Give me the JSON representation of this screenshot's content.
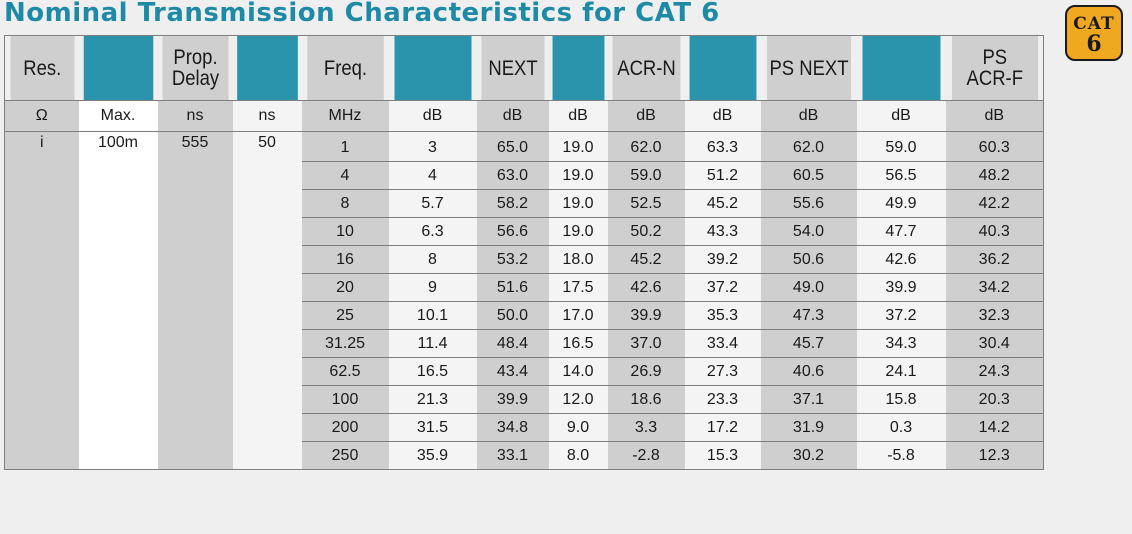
{
  "title": "Nominal Transmission Characteristics for CAT 6",
  "badge": {
    "line1": "CAT",
    "line2": "6"
  },
  "colors": {
    "title": "#1e8aa6",
    "teal": "#2a94ad",
    "gray": "#cfcfcf",
    "badge": "#f0a820"
  },
  "headers": [
    "Res.",
    "",
    "Prop. Delay",
    "",
    "Freq.",
    "",
    "NEXT",
    "",
    "ACR-N",
    "",
    "PS NEXT",
    "",
    "PS ACR-F"
  ],
  "units": [
    "Ω",
    "Max.",
    "ns",
    "ns",
    "MHz",
    "dB",
    "dB",
    "dB",
    "dB",
    "dB",
    "dB",
    "dB",
    "dB"
  ],
  "fixed": {
    "res": "i",
    "max": "100m",
    "delay": "555",
    "delay2": "50"
  },
  "rows": [
    [
      "1",
      "3",
      "65.0",
      "19.0",
      "62.0",
      "63.3",
      "62.0",
      "59.0",
      "60.3"
    ],
    [
      "4",
      "4",
      "63.0",
      "19.0",
      "59.0",
      "51.2",
      "60.5",
      "56.5",
      "48.2"
    ],
    [
      "8",
      "5.7",
      "58.2",
      "19.0",
      "52.5",
      "45.2",
      "55.6",
      "49.9",
      "42.2"
    ],
    [
      "10",
      "6.3",
      "56.6",
      "19.0",
      "50.2",
      "43.3",
      "54.0",
      "47.7",
      "40.3"
    ],
    [
      "16",
      "8",
      "53.2",
      "18.0",
      "45.2",
      "39.2",
      "50.6",
      "42.6",
      "36.2"
    ],
    [
      "20",
      "9",
      "51.6",
      "17.5",
      "42.6",
      "37.2",
      "49.0",
      "39.9",
      "34.2"
    ],
    [
      "25",
      "10.1",
      "50.0",
      "17.0",
      "39.9",
      "35.3",
      "47.3",
      "37.2",
      "32.3"
    ],
    [
      "31.25",
      "11.4",
      "48.4",
      "16.5",
      "37.0",
      "33.4",
      "45.7",
      "34.3",
      "30.4"
    ],
    [
      "62.5",
      "16.5",
      "43.4",
      "14.0",
      "26.9",
      "27.3",
      "40.6",
      "24.1",
      "24.3"
    ],
    [
      "100",
      "21.3",
      "39.9",
      "12.0",
      "18.6",
      "23.3",
      "37.1",
      "15.8",
      "20.3"
    ],
    [
      "200",
      "31.5",
      "34.8",
      "9.0",
      "3.3",
      "17.2",
      "31.9",
      "0.3",
      "14.2"
    ],
    [
      "250",
      "35.9",
      "33.1",
      "8.0",
      "-2.8",
      "15.3",
      "30.2",
      "-5.8",
      "12.3"
    ]
  ]
}
